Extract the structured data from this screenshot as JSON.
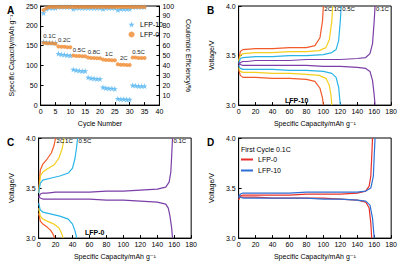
{
  "chart_data": [
    {
      "type": "scatter",
      "panel_label": "A",
      "x_label": "Cycle Number",
      "y_label": "Specific Capacity/mAh g⁻¹",
      "y2_label": "Coulombic Efficiency/%",
      "xlim": [
        0,
        40
      ],
      "xticks": [
        0,
        5,
        10,
        15,
        20,
        25,
        30,
        35,
        40
      ],
      "ylim": [
        0,
        250
      ],
      "yticks": [
        0,
        50,
        100,
        150,
        200,
        250
      ],
      "y2lim": [
        0,
        100
      ],
      "y2ticks": [
        10,
        20,
        30,
        40,
        50,
        60,
        70,
        80,
        90,
        100
      ],
      "grid": false,
      "legend": "right",
      "annotations": [
        "0.1C",
        "0.2C",
        "0.5C",
        "0.8C",
        "1C",
        "2C",
        "0.5C"
      ],
      "x": [
        1,
        2,
        3,
        4,
        5,
        6,
        7,
        8,
        9,
        10,
        11,
        12,
        13,
        14,
        15,
        16,
        17,
        18,
        19,
        20,
        21,
        22,
        23,
        24,
        25,
        26,
        27,
        28,
        29,
        30,
        31,
        32,
        33,
        34,
        35
      ],
      "series": [
        {
          "name": "LFP-10",
          "color": "#4fb3f0",
          "marker": "star",
          "values": [
            160,
            158,
            158,
            157,
            157,
            130,
            128,
            127,
            126,
            125,
            90,
            88,
            87,
            86,
            86,
            70,
            68,
            67,
            66,
            66,
            45,
            43,
            42,
            42,
            41,
            16,
            15,
            15,
            14,
            14,
            50,
            49,
            48,
            48,
            48
          ]
        },
        {
          "name": "LFP-0",
          "color": "#f08a30",
          "marker": "circle",
          "values": [
            157,
            156,
            156,
            156,
            155,
            148,
            147,
            147,
            146,
            146,
            125,
            124,
            124,
            123,
            123,
            120,
            119,
            119,
            118,
            118,
            115,
            114,
            114,
            113,
            113,
            103,
            102,
            102,
            101,
            101,
            120,
            120,
            119,
            119,
            119
          ]
        },
        {
          "name": "LFP-10",
          "color": "#4fb3f0",
          "marker": "star",
          "axis": "y2",
          "values": [
            93,
            97,
            98,
            98,
            98,
            99,
            99,
            99,
            99,
            99,
            97,
            98,
            98,
            98,
            98,
            98,
            98,
            98,
            98,
            98,
            97,
            98,
            98,
            98,
            98,
            96,
            97,
            97,
            97,
            97,
            99,
            99,
            99,
            99,
            99
          ]
        },
        {
          "name": "LFP-0",
          "color": "#f08a30",
          "marker": "circle",
          "axis": "y2",
          "values": [
            96,
            98,
            99,
            99,
            99,
            99,
            99,
            99,
            99,
            99,
            99,
            99,
            99,
            99,
            99,
            99,
            99,
            99,
            99,
            99,
            99,
            99,
            99,
            99,
            99,
            99,
            99,
            99,
            99,
            99,
            99,
            99,
            99,
            99,
            99
          ]
        }
      ]
    },
    {
      "type": "line",
      "panel_label": "B",
      "inner_label": "LFP-10",
      "x_label": "Specific Capacity/mAh g⁻¹",
      "y_label": "Voltage/V",
      "xlim": [
        0,
        180
      ],
      "xticks": [
        0,
        20,
        40,
        60,
        80,
        100,
        120,
        140,
        160,
        180
      ],
      "ylim": [
        3,
        4
      ],
      "yticks": [
        {
          "value": 3,
          "label": "3.0"
        },
        3.5,
        {
          "value": 4,
          "label": "4.0"
        }
      ],
      "grid": false,
      "series": [
        {
          "name": "2C",
          "color": "#f25a2a",
          "x": [
            0,
            2,
            5,
            20,
            40,
            60,
            80,
            90,
            96,
            99,
            100,
            null,
            0,
            2,
            5,
            20,
            40,
            60,
            80,
            90,
            96,
            99,
            100
          ],
          "values": [
            3.45,
            3.54,
            3.56,
            3.57,
            3.57,
            3.58,
            3.58,
            3.6,
            3.68,
            3.85,
            4,
            null,
            3.36,
            3.3,
            3.28,
            3.28,
            3.27,
            3.27,
            3.26,
            3.24,
            3.17,
            3.07,
            3
          ]
        },
        {
          "name": "1C",
          "color": "#f5cf1d",
          "x": [
            0,
            2,
            5,
            20,
            40,
            60,
            80,
            95,
            103,
            107,
            110,
            111,
            null,
            0,
            2,
            5,
            20,
            40,
            60,
            80,
            95,
            103,
            107,
            109,
            110
          ],
          "values": [
            3.44,
            3.5,
            3.52,
            3.53,
            3.53,
            3.54,
            3.54,
            3.55,
            3.58,
            3.66,
            3.85,
            4,
            null,
            3.38,
            3.34,
            3.33,
            3.33,
            3.32,
            3.32,
            3.31,
            3.3,
            3.27,
            3.2,
            3.1,
            3
          ]
        },
        {
          "name": "0.5C",
          "color": "#2ab4e8",
          "x": [
            0,
            2,
            5,
            20,
            40,
            60,
            80,
            100,
            110,
            115,
            118,
            120,
            121,
            null,
            0,
            2,
            5,
            20,
            40,
            60,
            80,
            100,
            110,
            115,
            118,
            120
          ],
          "values": [
            3.42,
            3.47,
            3.48,
            3.49,
            3.49,
            3.5,
            3.5,
            3.51,
            3.53,
            3.56,
            3.65,
            3.85,
            4,
            null,
            3.4,
            3.37,
            3.36,
            3.36,
            3.36,
            3.35,
            3.35,
            3.34,
            3.32,
            3.28,
            3.18,
            3
          ]
        },
        {
          "name": "0.1C",
          "color": "#7a3fa8",
          "x": [
            0,
            2,
            5,
            10,
            20,
            40,
            60,
            80,
            100,
            120,
            140,
            150,
            155,
            158,
            160,
            161,
            null,
            0,
            2,
            5,
            20,
            40,
            60,
            80,
            100,
            120,
            140,
            150,
            155,
            158,
            160,
            161
          ],
          "values": [
            3.4,
            3.43,
            3.44,
            3.44,
            3.45,
            3.45,
            3.45,
            3.46,
            3.46,
            3.46,
            3.47,
            3.48,
            3.52,
            3.62,
            3.85,
            4,
            null,
            3.43,
            3.41,
            3.4,
            3.4,
            3.4,
            3.4,
            3.4,
            3.39,
            3.39,
            3.38,
            3.37,
            3.34,
            3.25,
            3.1,
            3
          ]
        }
      ]
    },
    {
      "type": "line",
      "panel_label": "C",
      "inner_label": "LFP-0",
      "x_label": "Specific Capacity/mAh g⁻¹",
      "y_label": "Voltage/V",
      "xlim": [
        0,
        180
      ],
      "xticks": [
        0,
        20,
        40,
        60,
        80,
        100,
        120,
        140,
        160,
        180
      ],
      "ylim": [
        3,
        4
      ],
      "yticks": [
        {
          "value": 3,
          "label": "3.0"
        },
        3.5,
        {
          "value": 4,
          "label": "4.0"
        }
      ],
      "grid": false,
      "series": [
        {
          "name": "2C",
          "color": "#f25a2a",
          "x": [
            0,
            2,
            5,
            10,
            15,
            18,
            20,
            null,
            0,
            2,
            5,
            10,
            14,
            17,
            19
          ],
          "values": [
            3.47,
            3.68,
            3.74,
            3.79,
            3.85,
            3.92,
            4,
            null,
            3.25,
            3.17,
            3.14,
            3.11,
            3.08,
            3.04,
            3
          ]
        },
        {
          "name": "1C",
          "color": "#f5cf1d",
          "x": [
            0,
            2,
            5,
            10,
            18,
            24,
            28,
            30,
            null,
            0,
            2,
            5,
            10,
            18,
            24,
            27,
            29
          ],
          "values": [
            3.45,
            3.62,
            3.66,
            3.69,
            3.73,
            3.8,
            3.9,
            4,
            null,
            3.3,
            3.22,
            3.19,
            3.17,
            3.14,
            3.1,
            3.05,
            3
          ]
        },
        {
          "name": "0.5C",
          "color": "#2ab4e8",
          "x": [
            0,
            2,
            5,
            15,
            25,
            35,
            40,
            43,
            45,
            46,
            null,
            0,
            2,
            5,
            15,
            25,
            35,
            40,
            43,
            45
          ],
          "values": [
            3.45,
            3.55,
            3.58,
            3.6,
            3.62,
            3.65,
            3.7,
            3.8,
            3.92,
            4,
            null,
            3.35,
            3.28,
            3.26,
            3.24,
            3.22,
            3.19,
            3.14,
            3.07,
            3
          ]
        },
        {
          "name": "0.1C",
          "color": "#7a3fa8",
          "x": [
            0,
            2,
            5,
            10,
            20,
            40,
            60,
            80,
            100,
            120,
            140,
            150,
            154,
            156,
            157,
            158,
            null,
            0,
            2,
            5,
            20,
            40,
            60,
            80,
            100,
            120,
            140,
            150,
            153,
            155,
            157,
            158
          ],
          "values": [
            3.4,
            3.44,
            3.45,
            3.45,
            3.46,
            3.46,
            3.46,
            3.47,
            3.47,
            3.48,
            3.49,
            3.51,
            3.56,
            3.66,
            3.82,
            4,
            null,
            3.42,
            3.4,
            3.39,
            3.39,
            3.39,
            3.39,
            3.38,
            3.38,
            3.37,
            3.36,
            3.34,
            3.3,
            3.22,
            3.1,
            3
          ]
        }
      ]
    },
    {
      "type": "line",
      "panel_label": "D",
      "title": "First Cycle 0.1C",
      "x_label": "Specific Capacity/mAh g⁻¹",
      "y_label": "Voltage/V",
      "xlim": [
        0,
        180
      ],
      "xticks": [
        0,
        20,
        40,
        60,
        80,
        100,
        120,
        140,
        160,
        180
      ],
      "ylim": [
        3,
        4
      ],
      "yticks": [
        {
          "value": 3,
          "label": "3.0"
        },
        3.5,
        {
          "value": 4,
          "label": "4.0"
        }
      ],
      "grid": false,
      "legend": "upper left",
      "series": [
        {
          "name": "LFP-0",
          "color": "#e8302a",
          "x": [
            0,
            2,
            5,
            20,
            40,
            60,
            80,
            100,
            120,
            140,
            150,
            154,
            156,
            157,
            158,
            null,
            0,
            2,
            5,
            20,
            40,
            60,
            80,
            100,
            120,
            140,
            150,
            154,
            156,
            157
          ],
          "values": [
            3.38,
            3.42,
            3.43,
            3.43,
            3.43,
            3.43,
            3.44,
            3.44,
            3.44,
            3.45,
            3.47,
            3.52,
            3.62,
            3.8,
            4,
            null,
            3.42,
            3.41,
            3.41,
            3.41,
            3.4,
            3.4,
            3.4,
            3.4,
            3.39,
            3.38,
            3.36,
            3.3,
            3.15,
            3
          ]
        },
        {
          "name": "LFP-10",
          "color": "#2e6fd6",
          "x": [
            0,
            2,
            5,
            20,
            40,
            60,
            80,
            100,
            120,
            140,
            150,
            156,
            159,
            160,
            161,
            null,
            0,
            2,
            5,
            20,
            40,
            60,
            80,
            100,
            120,
            140,
            150,
            155,
            158,
            159,
            160
          ],
          "values": [
            3.4,
            3.44,
            3.45,
            3.45,
            3.45,
            3.45,
            3.46,
            3.46,
            3.46,
            3.46,
            3.47,
            3.5,
            3.62,
            3.82,
            4,
            null,
            3.43,
            3.41,
            3.4,
            3.4,
            3.4,
            3.4,
            3.4,
            3.39,
            3.39,
            3.38,
            3.37,
            3.33,
            3.2,
            3.1,
            3
          ]
        }
      ]
    }
  ]
}
